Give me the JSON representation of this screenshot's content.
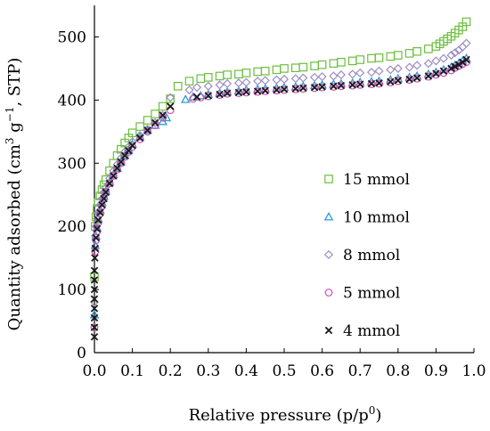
{
  "chart_data": {
    "type": "scatter",
    "title": "",
    "xlabel": "Relative pressure (p/p",
    "xlabel_sup": "0",
    "xlabel_end": ")",
    "ylabel": "Quantity adsorbed (cm",
    "ylabel_sup1": "3",
    "ylabel_mid": " g",
    "ylabel_sup2": "−1",
    "ylabel_end": ", STP)",
    "xlim": [
      0,
      1.0
    ],
    "ylim": [
      0,
      550
    ],
    "xticks": [
      0.0,
      0.1,
      0.2,
      0.3,
      0.4,
      0.5,
      0.6,
      0.7,
      0.8,
      0.9,
      1.0
    ],
    "xtick_labels": [
      "0.0",
      "0.1",
      "0.2",
      "0.3",
      "0.4",
      "0.5",
      "0.6",
      "0.7",
      "0.8",
      "0.9",
      "1.0"
    ],
    "yticks": [
      0,
      100,
      200,
      300,
      400,
      500
    ],
    "ytick_labels": [
      "0",
      "100",
      "200",
      "300",
      "400",
      "500"
    ],
    "grid": false,
    "legend_position": "right",
    "series": [
      {
        "name": "15 mmol",
        "marker": "square",
        "color": "#6abf3c",
        "x": [
          0.0,
          0.002,
          0.004,
          0.007,
          0.01,
          0.015,
          0.02,
          0.025,
          0.03,
          0.04,
          0.05,
          0.06,
          0.07,
          0.08,
          0.09,
          0.1,
          0.12,
          0.14,
          0.16,
          0.18,
          0.2,
          0.22,
          0.25,
          0.28,
          0.3,
          0.33,
          0.35,
          0.38,
          0.4,
          0.43,
          0.45,
          0.48,
          0.5,
          0.53,
          0.55,
          0.58,
          0.6,
          0.63,
          0.65,
          0.68,
          0.7,
          0.73,
          0.75,
          0.78,
          0.8,
          0.83,
          0.85,
          0.88,
          0.9,
          0.91,
          0.92,
          0.93,
          0.94,
          0.95,
          0.96,
          0.97,
          0.98
        ],
        "y": [
          120,
          200,
          215,
          228,
          238,
          248,
          258,
          266,
          274,
          288,
          300,
          312,
          322,
          332,
          340,
          348,
          358,
          368,
          378,
          390,
          402,
          422,
          430,
          434,
          436,
          438,
          440,
          441,
          443,
          445,
          446,
          448,
          450,
          451,
          452,
          454,
          456,
          458,
          460,
          462,
          464,
          466,
          467,
          469,
          471,
          474,
          477,
          481,
          485,
          489,
          493,
          497,
          501,
          506,
          511,
          516,
          524
        ]
      },
      {
        "name": "10 mmol",
        "marker": "triangle",
        "color": "#2e9bd6",
        "x": [
          0.0,
          0.002,
          0.004,
          0.007,
          0.01,
          0.015,
          0.02,
          0.025,
          0.03,
          0.04,
          0.05,
          0.06,
          0.07,
          0.08,
          0.09,
          0.1,
          0.12,
          0.14,
          0.16,
          0.18,
          0.19,
          0.24,
          0.26,
          0.28,
          0.3,
          0.33,
          0.35,
          0.38,
          0.4,
          0.43,
          0.45,
          0.48,
          0.5,
          0.53,
          0.55,
          0.58,
          0.6,
          0.63,
          0.65,
          0.68,
          0.7,
          0.73,
          0.75,
          0.78,
          0.8,
          0.83,
          0.85,
          0.88,
          0.9,
          0.92,
          0.94,
          0.95,
          0.96,
          0.97,
          0.98
        ],
        "y": [
          60,
          170,
          185,
          198,
          212,
          226,
          238,
          248,
          256,
          270,
          282,
          292,
          302,
          312,
          320,
          330,
          342,
          352,
          360,
          366,
          372,
          401,
          405,
          407,
          409,
          411,
          413,
          414,
          416,
          417,
          418,
          419,
          420,
          421,
          422,
          423,
          424,
          425,
          426,
          427,
          428,
          429,
          430,
          432,
          434,
          436,
          438,
          441,
          444,
          448,
          452,
          455,
          458,
          462,
          466
        ]
      },
      {
        "name": "8 mmol",
        "marker": "diamond",
        "color": "#9b8cc2",
        "x": [
          0.0,
          0.002,
          0.004,
          0.007,
          0.01,
          0.015,
          0.02,
          0.025,
          0.03,
          0.04,
          0.05,
          0.06,
          0.07,
          0.08,
          0.09,
          0.1,
          0.12,
          0.14,
          0.16,
          0.18,
          0.2,
          0.25,
          0.27,
          0.3,
          0.33,
          0.35,
          0.38,
          0.4,
          0.43,
          0.45,
          0.48,
          0.5,
          0.53,
          0.55,
          0.58,
          0.6,
          0.63,
          0.65,
          0.68,
          0.7,
          0.73,
          0.75,
          0.78,
          0.8,
          0.83,
          0.85,
          0.88,
          0.9,
          0.92,
          0.94,
          0.95,
          0.96,
          0.97,
          0.98
        ],
        "y": [
          80,
          185,
          200,
          212,
          222,
          234,
          244,
          254,
          262,
          276,
          288,
          298,
          308,
          318,
          326,
          334,
          344,
          354,
          364,
          376,
          404,
          416,
          420,
          422,
          424,
          426,
          427,
          428,
          430,
          431,
          432,
          433,
          434,
          435,
          436,
          437,
          438,
          440,
          441,
          443,
          444,
          446,
          448,
          450,
          452,
          455,
          458,
          462,
          466,
          471,
          475,
          479,
          484,
          490
        ]
      },
      {
        "name": "5 mmol",
        "marker": "circle",
        "color": "#d24fb3",
        "x": [
          0.0,
          0.002,
          0.004,
          0.007,
          0.01,
          0.015,
          0.02,
          0.025,
          0.03,
          0.04,
          0.05,
          0.06,
          0.07,
          0.08,
          0.09,
          0.1,
          0.12,
          0.14,
          0.16,
          0.18,
          0.2,
          0.26,
          0.28,
          0.3,
          0.33,
          0.35,
          0.38,
          0.4,
          0.43,
          0.45,
          0.48,
          0.5,
          0.53,
          0.55,
          0.58,
          0.6,
          0.63,
          0.65,
          0.68,
          0.7,
          0.73,
          0.75,
          0.78,
          0.8,
          0.83,
          0.85,
          0.88,
          0.9,
          0.92,
          0.94,
          0.95,
          0.96,
          0.97,
          0.98
        ],
        "y": [
          40,
          160,
          178,
          192,
          206,
          220,
          232,
          244,
          254,
          268,
          280,
          290,
          300,
          310,
          318,
          326,
          338,
          350,
          360,
          372,
          384,
          402,
          404,
          406,
          408,
          410,
          411,
          412,
          413,
          414,
          415,
          416,
          417,
          418,
          419,
          420,
          421,
          422,
          423,
          424,
          425,
          426,
          428,
          430,
          432,
          434,
          437,
          440,
          443,
          447,
          451,
          454,
          457,
          460
        ]
      },
      {
        "name": "4 mmol",
        "marker": "cross",
        "color": "#1a1a1a",
        "x": [
          0.0,
          0.0,
          0.0,
          0.0,
          0.0,
          0.0,
          0.0,
          0.0,
          0.001,
          0.002,
          0.004,
          0.007,
          0.01,
          0.015,
          0.02,
          0.025,
          0.03,
          0.04,
          0.05,
          0.06,
          0.07,
          0.08,
          0.09,
          0.1,
          0.12,
          0.14,
          0.16,
          0.18,
          0.2,
          0.27,
          0.3,
          0.33,
          0.35,
          0.38,
          0.4,
          0.43,
          0.45,
          0.48,
          0.5,
          0.53,
          0.55,
          0.58,
          0.6,
          0.63,
          0.65,
          0.68,
          0.7,
          0.73,
          0.75,
          0.78,
          0.8,
          0.83,
          0.85,
          0.88,
          0.9,
          0.92,
          0.94,
          0.95,
          0.96,
          0.97,
          0.98
        ],
        "y": [
          25,
          40,
          55,
          70,
          85,
          100,
          115,
          130,
          150,
          165,
          182,
          196,
          210,
          222,
          234,
          244,
          254,
          268,
          280,
          292,
          302,
          312,
          320,
          328,
          340,
          352,
          364,
          376,
          390,
          405,
          407,
          409,
          411,
          412,
          413,
          414,
          415,
          416,
          417,
          418,
          419,
          420,
          421,
          422,
          423,
          424,
          425,
          426,
          427,
          429,
          431,
          433,
          435,
          438,
          442,
          446,
          450,
          453,
          456,
          460,
          464
        ]
      }
    ]
  }
}
